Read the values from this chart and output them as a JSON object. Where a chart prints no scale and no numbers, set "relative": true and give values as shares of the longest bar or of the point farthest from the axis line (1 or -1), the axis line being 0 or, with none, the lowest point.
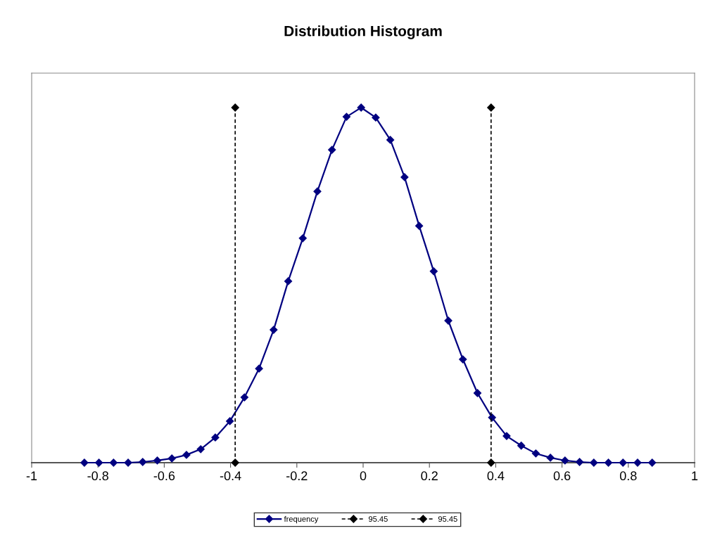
{
  "chart_data": {
    "type": "line",
    "title": "Distribution Histogram",
    "relative": true,
    "tick_labels": "x",
    "grid": false,
    "legend": "bottom",
    "marker": "diamond",
    "xlim": [
      -1,
      1
    ],
    "xticks": [
      -1,
      -0.8,
      -0.6,
      -0.4,
      -0.2,
      0,
      0.2,
      0.4,
      0.6,
      0.8,
      1
    ],
    "series": [
      {
        "name": "frequency",
        "color": "#000080",
        "line_style": "solid",
        "x": [
          -0.841,
          -0.797,
          -0.753,
          -0.709,
          -0.665,
          -0.621,
          -0.577,
          -0.533,
          -0.49,
          -0.446,
          -0.402,
          -0.358,
          -0.314,
          -0.27,
          -0.226,
          -0.182,
          -0.138,
          -0.094,
          -0.05,
          -0.006,
          0.038,
          0.082,
          0.125,
          0.169,
          0.213,
          0.257,
          0.301,
          0.345,
          0.389,
          0.433,
          0.477,
          0.521,
          0.565,
          0.609,
          0.653,
          0.696,
          0.74,
          0.784,
          0.828,
          0.872
        ],
        "values": [
          0,
          0,
          0,
          0,
          0.002,
          0.006,
          0.012,
          0.022,
          0.038,
          0.071,
          0.117,
          0.184,
          0.265,
          0.374,
          0.511,
          0.632,
          0.764,
          0.881,
          0.974,
          1,
          0.972,
          0.909,
          0.804,
          0.667,
          0.539,
          0.4,
          0.291,
          0.196,
          0.127,
          0.075,
          0.048,
          0.026,
          0.014,
          0.006,
          0.002,
          0,
          0,
          0,
          0,
          0
        ]
      },
      {
        "name": "95.45",
        "color": "#000000",
        "line_style": "dashed",
        "x": [
          -0.386,
          -0.386
        ],
        "values": [
          0,
          1
        ]
      },
      {
        "name": "95.45",
        "color": "#000000",
        "line_style": "dashed",
        "x": [
          0.386,
          0.386
        ],
        "values": [
          0,
          1
        ]
      }
    ]
  }
}
